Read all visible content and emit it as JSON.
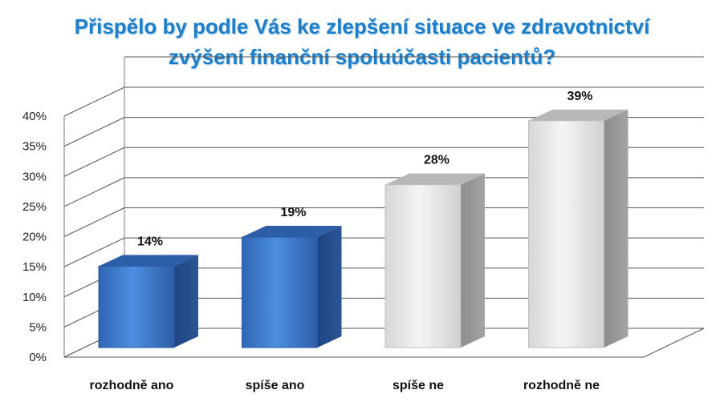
{
  "chart_data": {
    "type": "bar",
    "title": [
      "Přispělo by podle Vás ke zlepšení situace ve zdravotnictví",
      "zvýšení finanční spoluúčasti pacientů?"
    ],
    "categories": [
      "rozhodně ano",
      "spíše ano",
      "spíše ne",
      "rozhodně ne"
    ],
    "values": [
      14,
      19,
      28,
      39
    ],
    "data_labels": [
      "14%",
      "19%",
      "28%",
      "39%"
    ],
    "bar_colors": [
      "#3a78c8",
      "#3a78c8",
      "#e4e4e4",
      "#e4e4e4"
    ],
    "ylim": [
      0,
      40
    ],
    "yticks": [
      "0%",
      "5%",
      "10%",
      "15%",
      "20%",
      "25%",
      "30%",
      "35%",
      "40%"
    ],
    "grid": true,
    "style": "3d"
  }
}
